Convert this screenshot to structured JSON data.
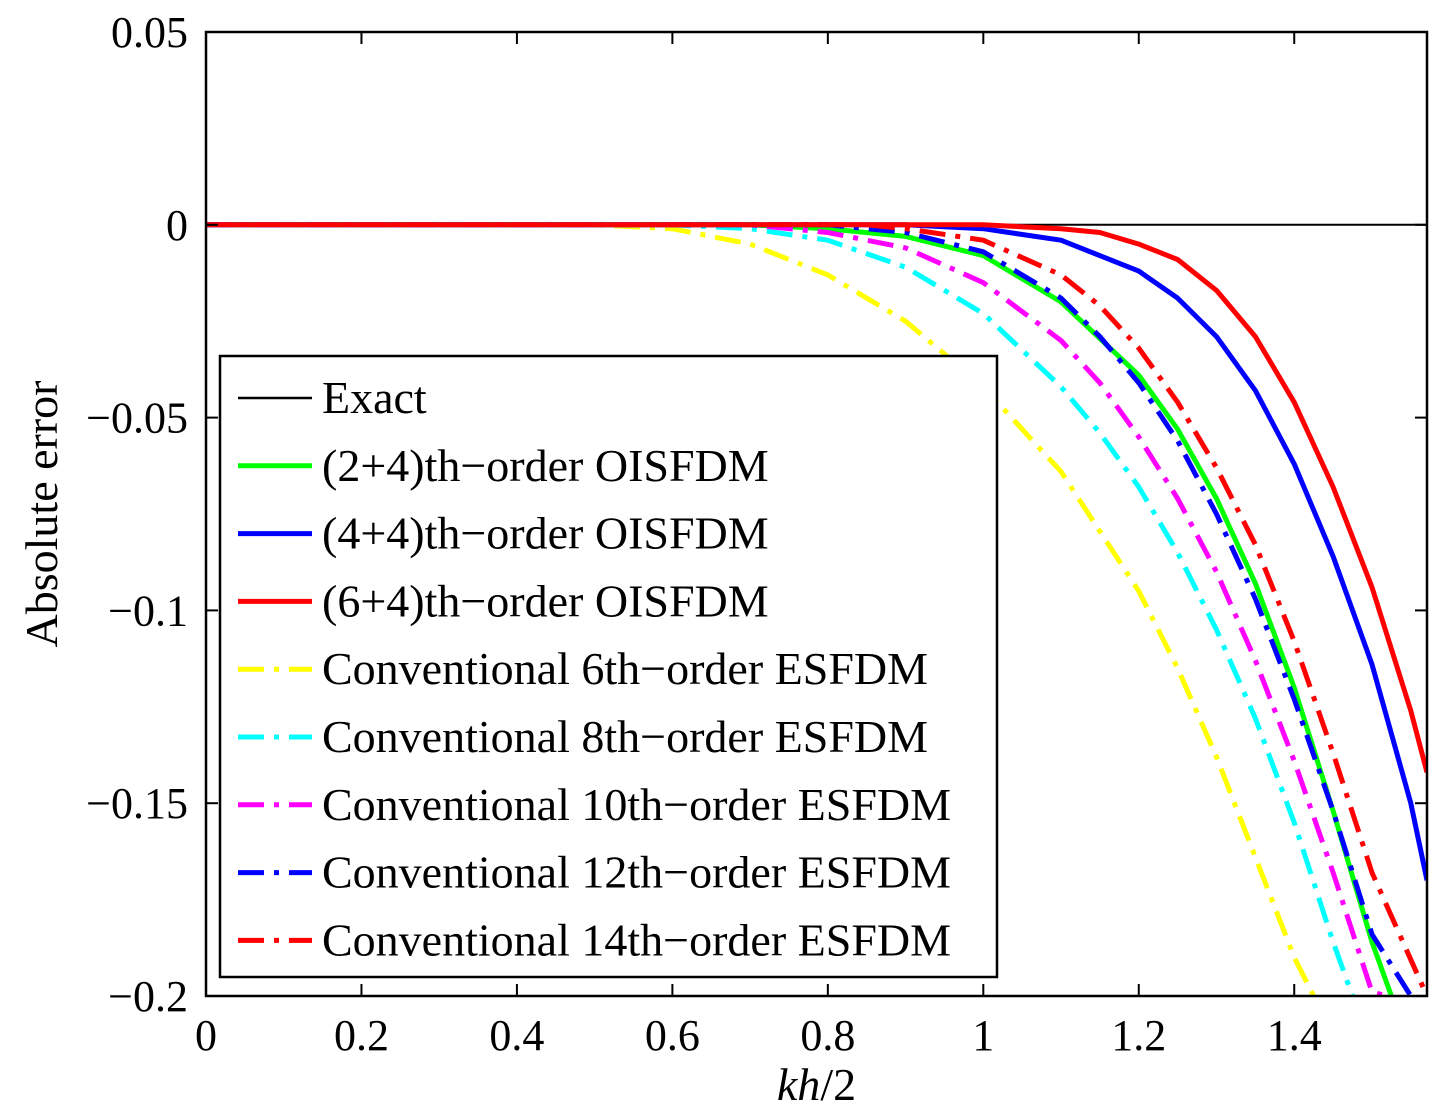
{
  "chart_data": {
    "type": "line",
    "title": "",
    "xlabel": {
      "italic": "kh",
      "rest": "/2"
    },
    "ylabel": "Absolute error",
    "xlim": [
      0,
      1.5708
    ],
    "ylim": [
      -0.2,
      0.05
    ],
    "x_ticks": [
      0,
      0.2,
      0.4,
      0.6,
      0.8,
      1,
      1.2,
      1.4
    ],
    "x_tick_labels": [
      "0",
      "0.2",
      "0.4",
      "0.6",
      "0.8",
      "1",
      "1.2",
      "1.4"
    ],
    "y_ticks": [
      0.05,
      0,
      -0.05,
      -0.1,
      -0.15,
      -0.2
    ],
    "y_tick_labels": [
      "0.05",
      "0",
      "−0.05",
      "−0.1",
      "−0.15",
      "−0.2"
    ],
    "grid": false,
    "legend_position": "bottom-left",
    "series": [
      {
        "name": "Exact",
        "color": "#000000",
        "style": "solid",
        "x": [
          0,
          1.5708
        ],
        "y": [
          0,
          0
        ]
      },
      {
        "name": "(2+4)th−order OISFDM",
        "color": "#00ff00",
        "style": "solid",
        "x": [
          0,
          0.7,
          0.8,
          0.9,
          1.0,
          1.1,
          1.2,
          1.25,
          1.3,
          1.35,
          1.4,
          1.45,
          1.5,
          1.525
        ],
        "y": [
          0,
          0,
          -0.001,
          -0.003,
          -0.008,
          -0.02,
          -0.039,
          -0.053,
          -0.071,
          -0.093,
          -0.12,
          -0.152,
          -0.186,
          -0.2
        ]
      },
      {
        "name": "(4+4)th−order OISFDM",
        "color": "#0000ff",
        "style": "solid",
        "x": [
          0,
          0.9,
          1.0,
          1.1,
          1.2,
          1.25,
          1.3,
          1.35,
          1.4,
          1.45,
          1.5,
          1.55,
          1.5708
        ],
        "y": [
          0,
          0,
          -0.001,
          -0.004,
          -0.012,
          -0.019,
          -0.029,
          -0.043,
          -0.062,
          -0.086,
          -0.114,
          -0.15,
          -0.17
        ]
      },
      {
        "name": "(6+4)th−order OISFDM",
        "color": "#ff0000",
        "style": "solid",
        "x": [
          0,
          1.0,
          1.1,
          1.15,
          1.2,
          1.25,
          1.3,
          1.35,
          1.4,
          1.45,
          1.5,
          1.55,
          1.5708
        ],
        "y": [
          0,
          0,
          -0.001,
          -0.002,
          -0.005,
          -0.009,
          -0.017,
          -0.029,
          -0.046,
          -0.068,
          -0.094,
          -0.126,
          -0.142
        ]
      },
      {
        "name": "Conventional 6th−order ESFDM",
        "color": "#ffff00",
        "style": "dashdot",
        "x": [
          0,
          0.5,
          0.6,
          0.7,
          0.8,
          0.9,
          1.0,
          1.1,
          1.2,
          1.25,
          1.3,
          1.35,
          1.4,
          1.425
        ],
        "y": [
          0,
          0,
          -0.001,
          -0.005,
          -0.013,
          -0.025,
          -0.042,
          -0.064,
          -0.095,
          -0.115,
          -0.138,
          -0.164,
          -0.19,
          -0.2
        ]
      },
      {
        "name": "Conventional 8th−order ESFDM",
        "color": "#00ffff",
        "style": "dashdot",
        "x": [
          0,
          0.6,
          0.7,
          0.8,
          0.9,
          1.0,
          1.1,
          1.15,
          1.2,
          1.25,
          1.3,
          1.35,
          1.4,
          1.45,
          1.475
        ],
        "y": [
          0,
          0,
          -0.001,
          -0.004,
          -0.011,
          -0.023,
          -0.042,
          -0.054,
          -0.068,
          -0.085,
          -0.105,
          -0.128,
          -0.155,
          -0.186,
          -0.2
        ]
      },
      {
        "name": "Conventional 10th−order ESFDM",
        "color": "#ff00ff",
        "style": "dashdot",
        "x": [
          0,
          0.7,
          0.8,
          0.9,
          1.0,
          1.1,
          1.15,
          1.2,
          1.25,
          1.3,
          1.35,
          1.4,
          1.45,
          1.5,
          1.52
        ],
        "y": [
          0,
          0,
          -0.002,
          -0.006,
          -0.015,
          -0.03,
          -0.041,
          -0.055,
          -0.071,
          -0.09,
          -0.113,
          -0.139,
          -0.168,
          -0.199,
          -0.2
        ]
      },
      {
        "name": "Conventional 12th−order ESFDM",
        "color": "#0000ff",
        "style": "dashdot",
        "x": [
          0,
          0.8,
          0.9,
          1.0,
          1.1,
          1.15,
          1.2,
          1.25,
          1.3,
          1.35,
          1.4,
          1.45,
          1.5,
          1.55
        ],
        "y": [
          0,
          0,
          -0.002,
          -0.007,
          -0.019,
          -0.029,
          -0.041,
          -0.056,
          -0.075,
          -0.097,
          -0.123,
          -0.152,
          -0.184,
          -0.2
        ]
      },
      {
        "name": "Conventional 14th−order ESFDM",
        "color": "#ff0000",
        "style": "dashdot",
        "x": [
          0,
          0.85,
          0.9,
          1.0,
          1.1,
          1.15,
          1.2,
          1.25,
          1.3,
          1.35,
          1.4,
          1.45,
          1.5,
          1.5708
        ],
        "y": [
          0,
          0,
          -0.001,
          -0.004,
          -0.013,
          -0.021,
          -0.032,
          -0.046,
          -0.063,
          -0.083,
          -0.108,
          -0.137,
          -0.168,
          -0.2
        ]
      }
    ]
  }
}
